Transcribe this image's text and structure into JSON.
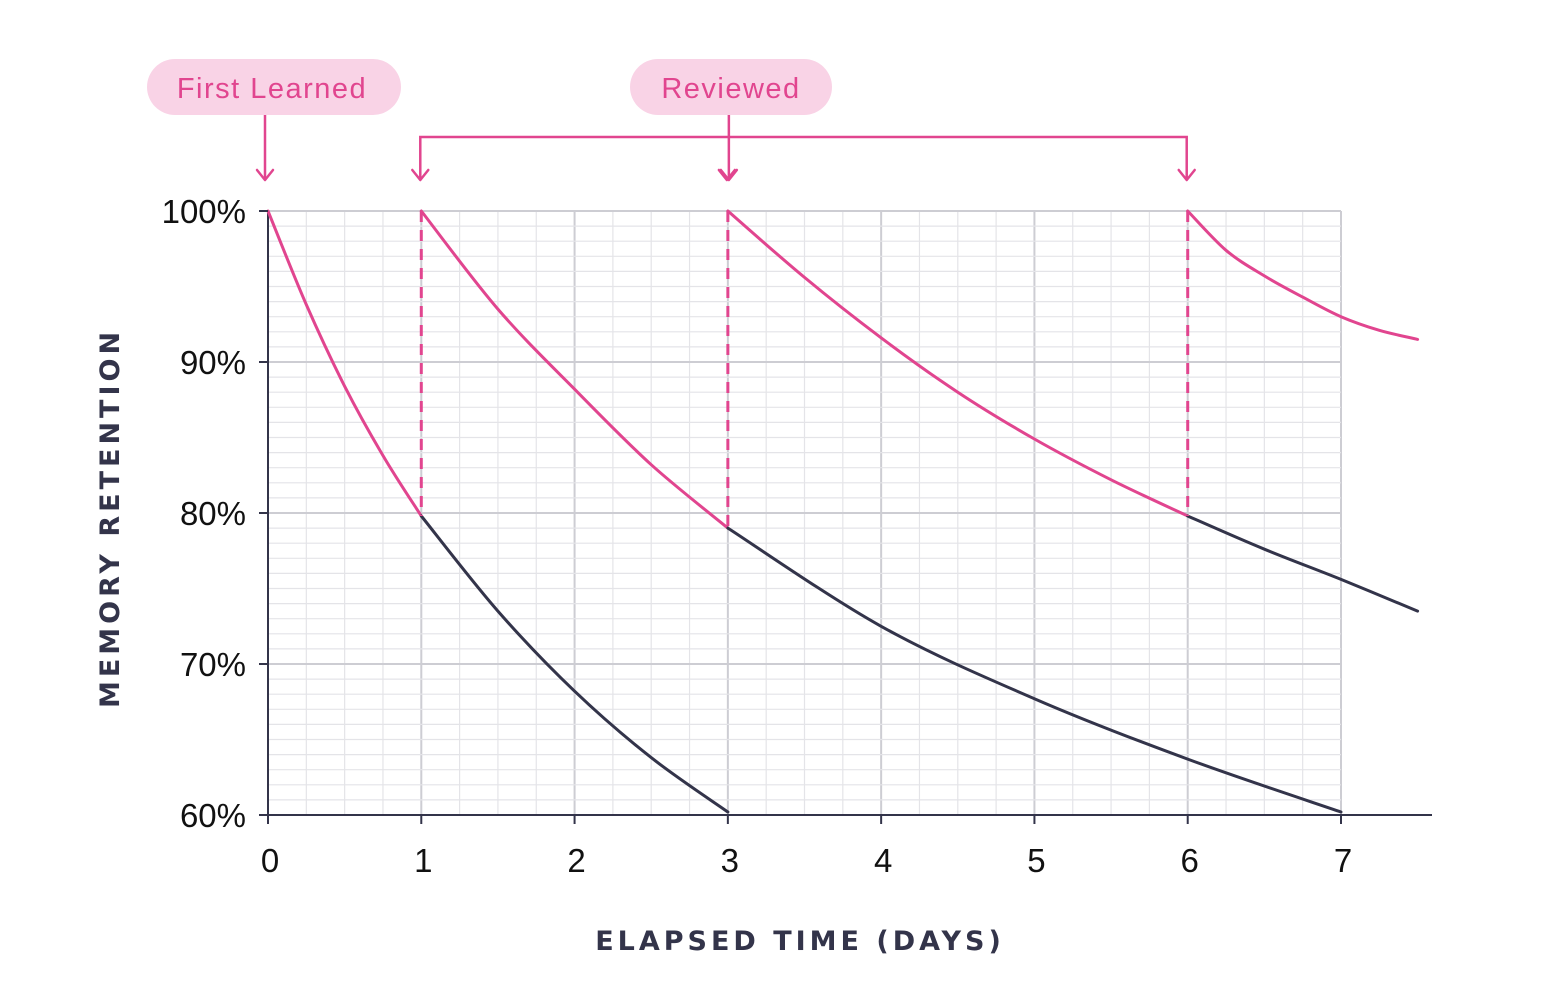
{
  "chart_data": {
    "type": "line",
    "title": "",
    "xlabel": "ELAPSED TIME (DAYS)",
    "ylabel": "MEMORY RETENTION",
    "xlim": [
      0,
      7.5
    ],
    "ylim": [
      60,
      100
    ],
    "x_ticks": [
      0,
      1,
      2,
      3,
      4,
      5,
      6,
      7
    ],
    "y_ticks": [
      {
        "value": 100,
        "label": "100%"
      },
      {
        "value": 90,
        "label": "90%"
      },
      {
        "value": 80,
        "label": "80%"
      },
      {
        "value": 70,
        "label": "70%"
      },
      {
        "value": 60,
        "label": "60%"
      }
    ],
    "grid": true,
    "annotations": {
      "first_learned": {
        "label": "First Learned",
        "day": 0
      },
      "reviewed": {
        "label": "Reviewed",
        "days": [
          1,
          3,
          6
        ]
      }
    },
    "series": [
      {
        "role": "retained",
        "segment": "after-learning",
        "points": [
          [
            0,
            100
          ],
          [
            0.25,
            93.8
          ],
          [
            0.5,
            88.4
          ],
          [
            0.75,
            83.8
          ],
          [
            1,
            79.8
          ]
        ]
      },
      {
        "role": "forgotten",
        "segment": "after-learning",
        "points": [
          [
            1,
            79.8
          ],
          [
            1.5,
            73.5
          ],
          [
            2,
            68.2
          ],
          [
            2.5,
            63.8
          ],
          [
            3,
            60.2
          ]
        ]
      },
      {
        "role": "retained",
        "segment": "after-review-1",
        "points": [
          [
            1,
            100
          ],
          [
            1.5,
            93.5
          ],
          [
            2,
            88.2
          ],
          [
            2.5,
            83.2
          ],
          [
            3,
            79.0
          ]
        ]
      },
      {
        "role": "forgotten",
        "segment": "after-review-1",
        "points": [
          [
            3,
            79.0
          ],
          [
            4,
            72.5
          ],
          [
            5,
            67.7
          ],
          [
            6,
            63.7
          ],
          [
            7,
            60.2
          ]
        ]
      },
      {
        "role": "retained",
        "segment": "after-review-2",
        "points": [
          [
            3,
            100
          ],
          [
            3.5,
            95.6
          ],
          [
            4,
            91.6
          ],
          [
            4.5,
            88.0
          ],
          [
            5,
            84.9
          ],
          [
            5.5,
            82.2
          ],
          [
            6,
            79.8
          ]
        ]
      },
      {
        "role": "forgotten",
        "segment": "after-review-2",
        "points": [
          [
            6,
            79.8
          ],
          [
            6.5,
            77.6
          ],
          [
            7,
            75.6
          ],
          [
            7.5,
            73.5
          ]
        ]
      },
      {
        "role": "retained",
        "segment": "after-review-3",
        "points": [
          [
            6,
            100
          ],
          [
            6.25,
            97.4
          ],
          [
            6.5,
            95.7
          ],
          [
            6.75,
            94.3
          ],
          [
            7,
            93.0
          ],
          [
            7.25,
            92.1
          ],
          [
            7.5,
            91.5
          ]
        ]
      }
    ],
    "colors": {
      "retained": "#e1458f",
      "forgotten": "#33344a",
      "pill_fill": "#f9d3e6",
      "grid_major": "#cdcdd3",
      "grid_minor": "#e4e4e8"
    }
  }
}
